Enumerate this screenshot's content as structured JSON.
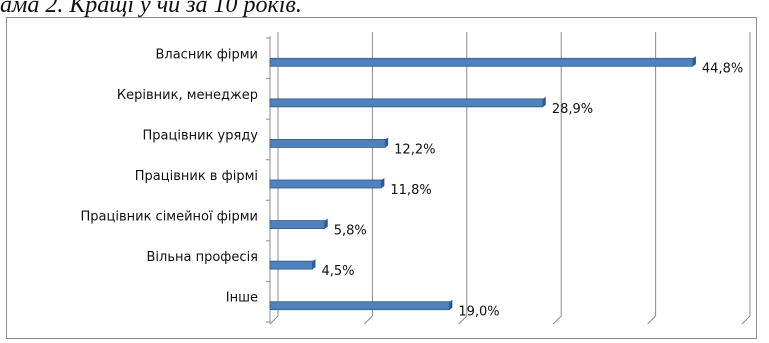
{
  "caption": "ама 2. Кращі у чи за 10 років.",
  "chart_data": {
    "type": "bar",
    "orientation": "horizontal",
    "categories": [
      "Власник фірми",
      "Керівник, менеджер",
      "Працівник уряду",
      "Працівник в фірмі",
      "Працівник сімейної фірми",
      "Вільна професія",
      "Інше"
    ],
    "values": [
      44.8,
      28.9,
      12.2,
      11.8,
      5.8,
      4.5,
      19.0
    ],
    "value_labels": [
      "44,8%",
      "28,9%",
      "12,2%",
      "11,8%",
      "5,8%",
      "4,5%",
      "19,0%"
    ],
    "xlim": [
      0,
      50
    ],
    "grid": true,
    "legend": "none",
    "bar_color": "#4f81bd",
    "bar_edge_color": "#2e5a8e"
  }
}
